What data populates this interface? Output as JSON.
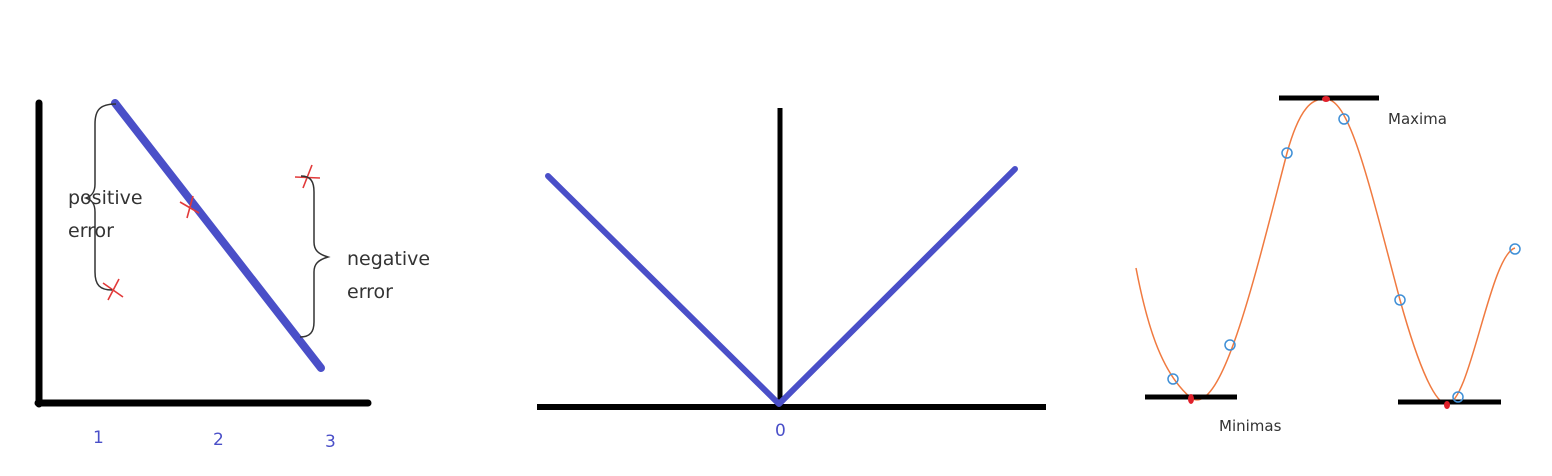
{
  "colors": {
    "axis": "#000000",
    "regression_line": "#4a4fc8",
    "error_point": "#e23a3a",
    "curve": "#f07a40",
    "sample_point": "#3f8fd6",
    "extremum": "#e0202a",
    "tick_text": "#4a4fc8"
  },
  "panel_error": {
    "positive_label_line1": "positive",
    "positive_label_line2": "error",
    "negative_label_line1": "negative",
    "negative_label_line2": "error",
    "ticks": [
      "1",
      "2",
      "3"
    ]
  },
  "panel_abs": {
    "origin_label": "0"
  },
  "panel_extrema": {
    "maxima_label": "Maxima",
    "minimas_label": "Minimas"
  }
}
